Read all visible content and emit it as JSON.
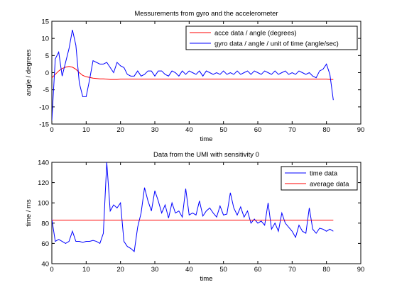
{
  "chart_data": [
    {
      "type": "line",
      "title": "Messurements from gyro and the accelerometer",
      "xlabel": "time",
      "ylabel": "angle / degrees",
      "xlim": [
        0,
        90
      ],
      "ylim": [
        -15,
        15
      ],
      "xticks": [
        0,
        10,
        20,
        30,
        40,
        50,
        60,
        70,
        80,
        90
      ],
      "yticks": [
        -15,
        -10,
        -5,
        0,
        5,
        10,
        15
      ],
      "grid": false,
      "legend": "top-right",
      "series": [
        {
          "name": "acce data / angle (degrees)",
          "color": "#ff0000",
          "x": [
            0,
            1,
            2,
            3,
            4,
            5,
            6,
            7,
            8,
            9,
            10,
            11,
            12,
            13,
            14,
            15,
            16,
            17,
            18,
            19,
            20,
            30,
            40,
            50,
            60,
            70,
            80,
            81,
            82
          ],
          "y": [
            -1.5,
            -0.5,
            0.5,
            1.2,
            1.6,
            1.8,
            1.6,
            1.0,
            0.0,
            -0.8,
            -1.2,
            -1.4,
            -1.6,
            -1.7,
            -1.8,
            -1.8,
            -1.9,
            -2.0,
            -2.0,
            -2.0,
            -1.9,
            -1.9,
            -1.9,
            -1.9,
            -1.9,
            -1.9,
            -1.9,
            -2.0,
            -2.0
          ]
        },
        {
          "name": "gyro data / angle / unit of time (angle/sec)",
          "color": "#0000ff",
          "x": [
            0,
            1,
            2,
            3,
            4,
            5,
            6,
            7,
            8,
            9,
            10,
            11,
            12,
            13,
            14,
            15,
            16,
            17,
            18,
            19,
            20,
            21,
            22,
            23,
            24,
            25,
            26,
            27,
            28,
            29,
            30,
            31,
            32,
            33,
            34,
            35,
            36,
            37,
            38,
            39,
            40,
            41,
            42,
            43,
            44,
            45,
            46,
            47,
            48,
            49,
            50,
            51,
            52,
            53,
            54,
            55,
            56,
            57,
            58,
            59,
            60,
            61,
            62,
            63,
            64,
            65,
            66,
            67,
            68,
            69,
            70,
            71,
            72,
            73,
            74,
            75,
            76,
            77,
            78,
            79,
            80,
            81,
            82
          ],
          "y": [
            -14,
            4,
            6,
            -1,
            3,
            7,
            12.5,
            8,
            -3,
            -7,
            -7,
            -2,
            3.5,
            3,
            2.5,
            2.5,
            3,
            1.5,
            0,
            3,
            2,
            1.5,
            -0.5,
            -1,
            -1,
            0.5,
            -1,
            -0.5,
            0.5,
            0.5,
            -1,
            0.5,
            0.5,
            -0.5,
            -1,
            0.5,
            0,
            -1,
            0.5,
            -0.5,
            0.5,
            0,
            -0.5,
            0.5,
            -1,
            0.5,
            0,
            -0.5,
            0,
            -0.5,
            0.5,
            -0.5,
            0,
            -0.5,
            0.5,
            -0.5,
            0,
            0.5,
            -0.5,
            0.5,
            0,
            -0.5,
            0.5,
            0,
            -0.5,
            0.5,
            -0.5,
            0,
            0.5,
            -0.5,
            0,
            -0.5,
            0.5,
            0,
            -0.5,
            0,
            -1,
            -1.5,
            0.5,
            1,
            2.5,
            -0.5,
            -8
          ]
        }
      ]
    },
    {
      "type": "line",
      "title": "Data from the UMI with sensitivity 0",
      "xlabel": "time",
      "ylabel": "time / ms",
      "xlim": [
        0,
        90
      ],
      "ylim": [
        40,
        140
      ],
      "xticks": [
        0,
        10,
        20,
        30,
        40,
        50,
        60,
        70,
        80,
        90
      ],
      "yticks": [
        40,
        60,
        80,
        100,
        120,
        140
      ],
      "grid": false,
      "legend": "top-right",
      "series": [
        {
          "name": "time data",
          "color": "#0000ff",
          "x": [
            0,
            1,
            2,
            3,
            4,
            5,
            6,
            7,
            8,
            9,
            10,
            11,
            12,
            13,
            14,
            15,
            16,
            17,
            18,
            19,
            20,
            21,
            22,
            23,
            24,
            25,
            26,
            27,
            28,
            29,
            30,
            31,
            32,
            33,
            34,
            35,
            36,
            37,
            38,
            39,
            40,
            41,
            42,
            43,
            44,
            45,
            46,
            47,
            48,
            49,
            50,
            51,
            52,
            53,
            54,
            55,
            56,
            57,
            58,
            59,
            60,
            61,
            62,
            63,
            64,
            65,
            66,
            67,
            68,
            69,
            70,
            71,
            72,
            73,
            74,
            75,
            76,
            77,
            78,
            79,
            80,
            81,
            82
          ],
          "y": [
            84,
            62,
            64,
            62,
            60,
            62,
            72,
            62,
            62,
            61,
            62,
            62,
            63,
            62,
            60,
            70,
            140,
            92,
            98,
            95,
            100,
            62,
            57,
            55,
            52,
            76,
            90,
            115,
            102,
            92,
            112,
            102,
            90,
            98,
            85,
            100,
            90,
            92,
            86,
            114,
            88,
            90,
            88,
            102,
            87,
            92,
            95,
            90,
            86,
            97,
            88,
            89,
            110,
            95,
            88,
            96,
            86,
            92,
            80,
            84,
            80,
            82,
            78,
            100,
            74,
            80,
            72,
            90,
            80,
            76,
            72,
            66,
            78,
            72,
            70,
            95,
            74,
            70,
            75,
            74,
            72,
            74,
            72
          ]
        },
        {
          "name": "average data",
          "color": "#ff0000",
          "x": [
            0,
            82
          ],
          "y": [
            83,
            83
          ]
        }
      ]
    }
  ]
}
